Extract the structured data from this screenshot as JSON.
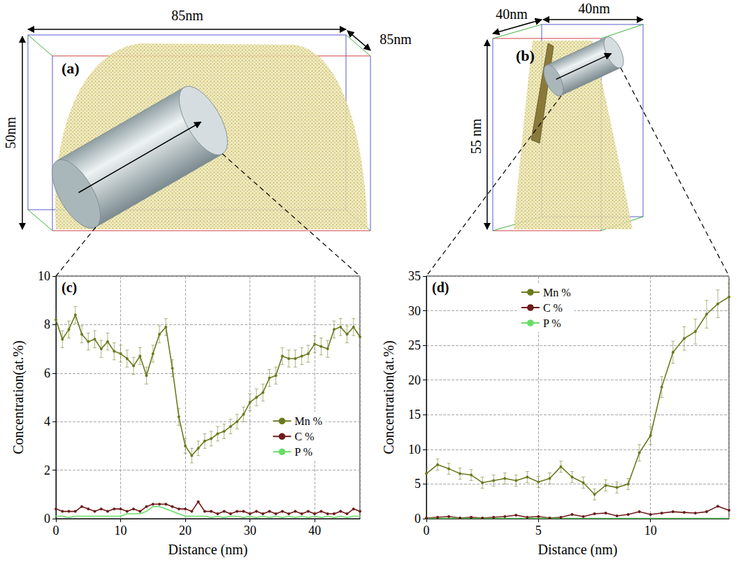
{
  "panels": [
    {
      "label": "(a)",
      "dimensions": {
        "width": "85nm",
        "depth": "85nm",
        "height": "50nm"
      }
    },
    {
      "label": "(b)",
      "dimensions": {
        "depth": "40nm",
        "width": "40nm",
        "height": "55 nm"
      }
    }
  ],
  "chart_data": [
    {
      "type": "line",
      "title": "(c)",
      "x_label": "Distance (nm)",
      "y_label": "Concentration(at.%)",
      "x": [
        0,
        1,
        2,
        3,
        4,
        5,
        6,
        7,
        8,
        9,
        10,
        11,
        12,
        13,
        14,
        15,
        16,
        17,
        18,
        19,
        20,
        21,
        22,
        23,
        24,
        25,
        26,
        27,
        28,
        29,
        30,
        31,
        32,
        33,
        34,
        35,
        36,
        37,
        38,
        39,
        40,
        41,
        42,
        43,
        44,
        45,
        46,
        47
      ],
      "series": [
        {
          "name": "Mn %",
          "color": "#6b7a1e",
          "marker": "circle",
          "values": [
            8.2,
            7.4,
            7.8,
            8.4,
            7.6,
            7.3,
            7.4,
            7.0,
            7.3,
            6.9,
            6.8,
            6.6,
            6.3,
            6.7,
            5.9,
            6.8,
            7.6,
            7.9,
            6.2,
            4.2,
            3.0,
            2.6,
            2.9,
            3.2,
            3.3,
            3.5,
            3.6,
            3.8,
            4.0,
            4.3,
            4.8,
            5.0,
            5.2,
            5.8,
            5.9,
            6.7,
            6.6,
            6.6,
            6.7,
            6.8,
            7.2,
            7.1,
            7.0,
            7.8,
            7.9,
            7.6,
            7.9,
            7.5
          ],
          "errors": [
            0.35,
            0.35,
            0.35,
            0.35,
            0.35,
            0.35,
            0.35,
            0.35,
            0.35,
            0.35,
            0.35,
            0.35,
            0.35,
            0.35,
            0.35,
            0.35,
            0.35,
            0.35,
            0.35,
            0.35,
            0.3,
            0.3,
            0.3,
            0.3,
            0.3,
            0.3,
            0.3,
            0.3,
            0.3,
            0.3,
            0.35,
            0.35,
            0.35,
            0.35,
            0.35,
            0.35,
            0.35,
            0.35,
            0.35,
            0.35,
            0.35,
            0.35,
            0.35,
            0.35,
            0.35,
            0.35,
            0.35,
            0.35
          ]
        },
        {
          "name": "C %",
          "color": "#6e1b1b",
          "marker": "circle",
          "values": [
            0.4,
            0.3,
            0.3,
            0.3,
            0.5,
            0.4,
            0.3,
            0.4,
            0.3,
            0.4,
            0.4,
            0.3,
            0.4,
            0.3,
            0.5,
            0.6,
            0.6,
            0.6,
            0.5,
            0.4,
            0.4,
            0.3,
            0.7,
            0.3,
            0.3,
            0.2,
            0.3,
            0.2,
            0.3,
            0.3,
            0.2,
            0.3,
            0.2,
            0.3,
            0.2,
            0.3,
            0.2,
            0.3,
            0.2,
            0.3,
            0.2,
            0.3,
            0.2,
            0.2,
            0.3,
            0.2,
            0.4,
            0.3
          ]
        },
        {
          "name": "P %",
          "color": "#66dd66",
          "marker": "none",
          "values": [
            0.1,
            0.1,
            0.05,
            0.1,
            0.1,
            0.1,
            0.1,
            0.1,
            0.1,
            0.1,
            0.1,
            0.2,
            0.2,
            0.2,
            0.3,
            0.5,
            0.5,
            0.4,
            0.3,
            0.2,
            0.1,
            0.1,
            0.1,
            0.1,
            0.05,
            0.1,
            0.05,
            0.1,
            0.1,
            0.05,
            0.1,
            0.05,
            0.1,
            0.05,
            0.1,
            0.05,
            0.1,
            0.05,
            0.1,
            0.05,
            0.1,
            0.05,
            0.1,
            0.05,
            0.1,
            0.05,
            0.1,
            0.1
          ]
        }
      ],
      "xlim": [
        0,
        47
      ],
      "xticks": [
        0,
        10,
        20,
        30,
        40
      ],
      "ylim": [
        0,
        10
      ],
      "yticks": [
        0,
        2,
        4,
        6,
        8,
        10
      ],
      "grid": true,
      "legend": "right"
    },
    {
      "type": "line",
      "title": "(d)",
      "x_label": "Distance (nm)",
      "y_label": "Concentration(at.%)",
      "x": [
        0,
        0.5,
        1,
        1.5,
        2,
        2.5,
        3,
        3.5,
        4,
        4.5,
        5,
        5.5,
        6,
        6.5,
        7,
        7.5,
        8,
        8.5,
        9,
        9.5,
        10,
        10.5,
        11,
        11.5,
        12,
        12.5,
        13,
        13.5
      ],
      "series": [
        {
          "name": "Mn %",
          "color": "#6b7a1e",
          "marker": "circle",
          "values": [
            6.5,
            7.8,
            7.2,
            6.5,
            6.3,
            5.2,
            5.5,
            5.8,
            5.5,
            6.0,
            5.3,
            5.8,
            7.5,
            6.0,
            5.2,
            3.5,
            4.8,
            4.5,
            5.0,
            9.5,
            12.0,
            19.0,
            24.0,
            26.0,
            27.0,
            29.5,
            31.0,
            32.0
          ],
          "errors": [
            0.8,
            0.8,
            0.8,
            0.8,
            0.8,
            0.8,
            0.8,
            0.8,
            0.8,
            0.8,
            0.8,
            0.8,
            0.8,
            0.8,
            0.8,
            0.8,
            0.8,
            0.8,
            0.8,
            1.2,
            1.3,
            1.5,
            1.6,
            1.7,
            1.8,
            2.0,
            2.0,
            2.0
          ]
        },
        {
          "name": "C %",
          "color": "#6e1b1b",
          "marker": "circle",
          "values": [
            0.1,
            0.2,
            0.3,
            0.1,
            0.2,
            0.1,
            0.2,
            0.3,
            0.5,
            0.2,
            0.3,
            0.1,
            0.2,
            0.6,
            0.3,
            0.7,
            0.8,
            0.4,
            0.6,
            1.0,
            0.6,
            0.8,
            1.0,
            0.9,
            0.8,
            1.0,
            1.8,
            1.2
          ]
        },
        {
          "name": "P %",
          "color": "#66dd66",
          "marker": "none",
          "values": [
            0.05,
            0.05,
            0.05,
            0.05,
            0.05,
            0.05,
            0.05,
            0.05,
            0.05,
            0.05,
            0.05,
            0.05,
            0.05,
            0.05,
            0.05,
            0.05,
            0.05,
            0.05,
            0.05,
            0.05,
            0.05,
            0.05,
            0.05,
            0.05,
            0.05,
            0.05,
            0.05,
            0.05
          ]
        }
      ],
      "xlim": [
        0,
        13.5
      ],
      "xticks": [
        0,
        5,
        10
      ],
      "ylim": [
        0,
        35
      ],
      "yticks": [
        0,
        5,
        10,
        15,
        20,
        25,
        30,
        35
      ],
      "grid": true,
      "legend": "top"
    }
  ]
}
